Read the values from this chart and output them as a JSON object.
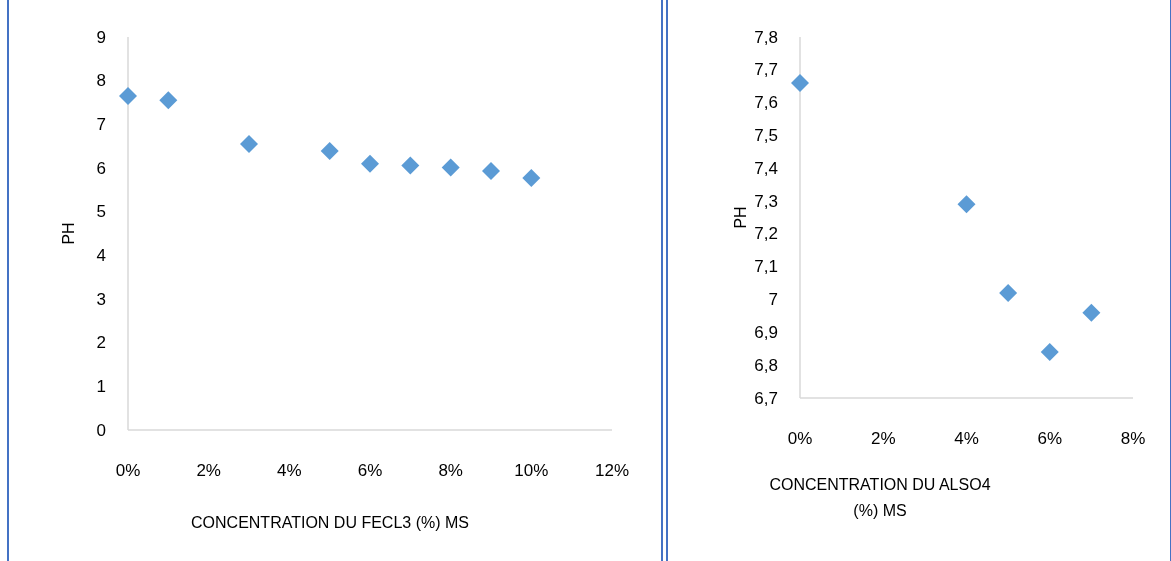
{
  "chart_data": [
    {
      "type": "scatter",
      "xlabel": "CONCENTRATION DU FECL3 (%) MS",
      "ylabel": "PH",
      "marker": "diamond",
      "x": [
        0,
        1,
        3,
        5,
        6,
        7,
        8,
        9,
        10
      ],
      "series": [
        {
          "color": "#5b9bd5",
          "values": [
            7.65,
            7.55,
            6.55,
            6.39,
            6.1,
            6.06,
            6.01,
            5.93,
            5.77
          ]
        }
      ],
      "xlim": [
        0,
        12
      ],
      "xticks": [
        {
          "value": 0,
          "label": "0%"
        },
        {
          "value": 2,
          "label": "2%"
        },
        {
          "value": 4,
          "label": "4%"
        },
        {
          "value": 6,
          "label": "6%"
        },
        {
          "value": 8,
          "label": "8%"
        },
        {
          "value": 10,
          "label": "10%"
        },
        {
          "value": 12,
          "label": "12%"
        }
      ],
      "ylim": [
        0,
        9
      ],
      "yticks": [
        0,
        1,
        2,
        3,
        4,
        5,
        6,
        7,
        8,
        9
      ],
      "grid": false
    },
    {
      "type": "scatter",
      "xlabel": "CONCENTRATION DU ALSO4 (%) MS",
      "ylabel": "PH",
      "marker": "diamond",
      "x": [
        0,
        4,
        5,
        6,
        7
      ],
      "series": [
        {
          "color": "#5b9bd5",
          "values": [
            7.66,
            7.29,
            7.02,
            6.84,
            6.96
          ]
        }
      ],
      "xlim": [
        0,
        8
      ],
      "xticks": [
        {
          "value": 0,
          "label": "0%"
        },
        {
          "value": 2,
          "label": "2%"
        },
        {
          "value": 4,
          "label": "4%"
        },
        {
          "value": 6,
          "label": "6%"
        },
        {
          "value": 8,
          "label": "8%"
        }
      ],
      "ylim": [
        6.7,
        7.8
      ],
      "yticks": [
        {
          "value": 6.7,
          "label": "6,7"
        },
        {
          "value": 6.8,
          "label": "6,8"
        },
        {
          "value": 6.9,
          "label": "6,9"
        },
        {
          "value": 7,
          "label": "7"
        },
        {
          "value": 7.1,
          "label": "7,1"
        },
        {
          "value": 7.2,
          "label": "7,2"
        },
        {
          "value": 7.3,
          "label": "7,3"
        },
        {
          "value": 7.4,
          "label": "7,4"
        },
        {
          "value": 7.5,
          "label": "7,5"
        },
        {
          "value": 7.6,
          "label": "7,6"
        },
        {
          "value": 7.7,
          "label": "7,7"
        },
        {
          "value": 7.8,
          "label": "7,8"
        }
      ],
      "grid": false
    }
  ]
}
